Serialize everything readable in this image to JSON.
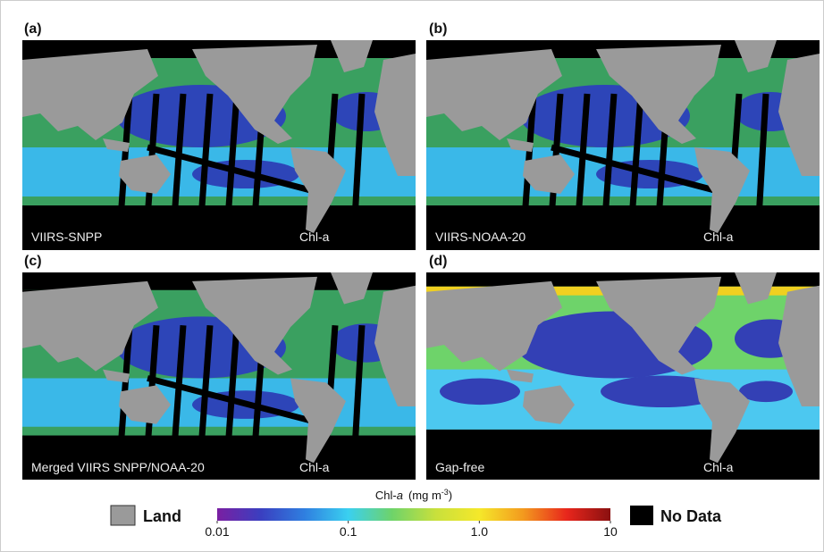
{
  "panels": [
    {
      "label": "(a)",
      "caption_left": "VIIRS-SNPP",
      "caption_right": "Chl-a"
    },
    {
      "label": "(b)",
      "caption_left": "VIIRS-NOAA-20",
      "caption_right": "Chl-a"
    },
    {
      "label": "(c)",
      "caption_left": "Merged VIIRS SNPP/NOAA-20",
      "caption_right": "Chl-a"
    },
    {
      "label": "(d)",
      "caption_left": "Gap-free",
      "caption_right": "Chl-a"
    }
  ],
  "colorbar": {
    "title_prefix": "Chl-",
    "title_var": "a",
    "title_unit": "(mg m",
    "title_exp": "-3",
    "title_end": ")",
    "scale": "log",
    "lim": [
      0.01,
      10
    ],
    "ticks": [
      0.01,
      0.1,
      {
        "value": 1,
        "label": "1.0"
      },
      10
    ],
    "colors": [
      "#7a1fa2",
      "#3a3fc0",
      "#2f7fe0",
      "#3ad0f0",
      "#6ed36a",
      "#c8e03c",
      "#f5e82a",
      "#f39a1e",
      "#e8261c",
      "#8a1010"
    ]
  },
  "legend": {
    "land": "Land",
    "no_data": "No Data"
  }
}
